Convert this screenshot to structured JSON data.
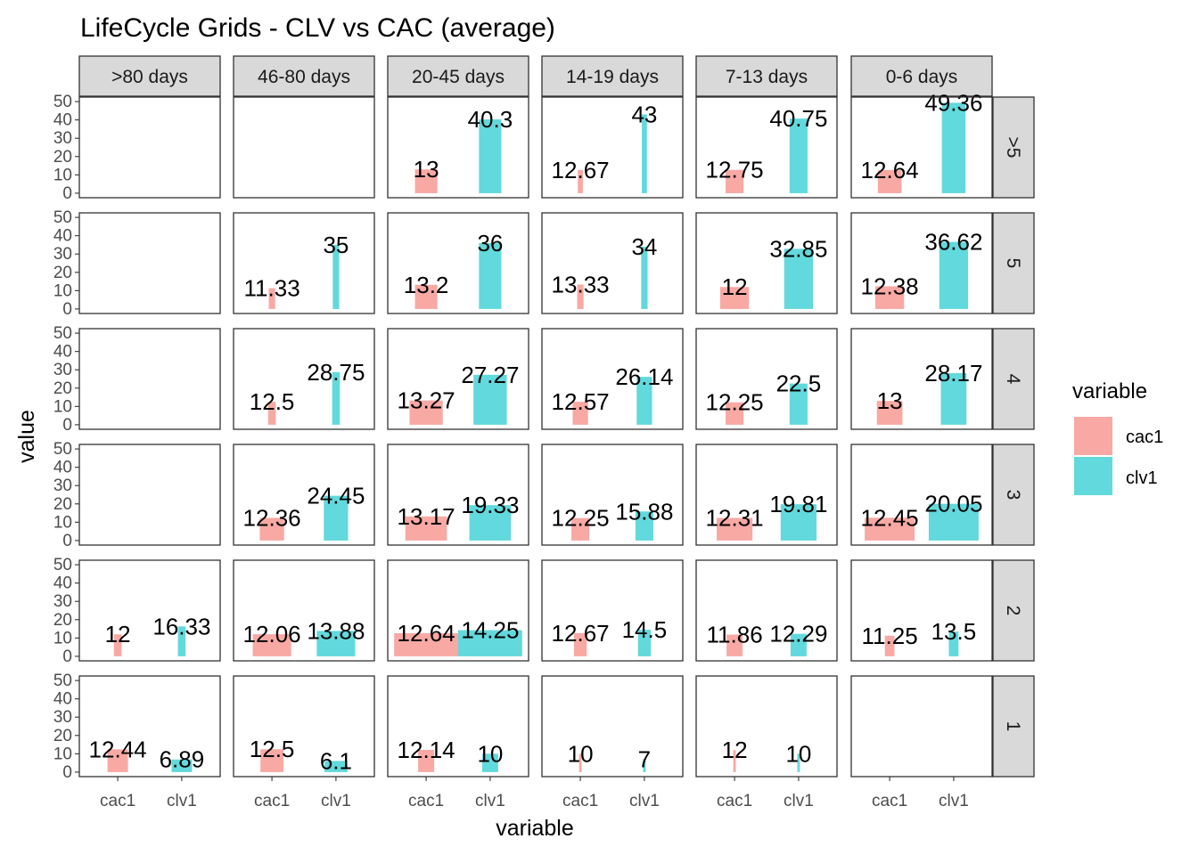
{
  "chart_data": {
    "type": "bar",
    "title": "LifeCycle Grids - CLV vs CAC (average)",
    "xlabel": "variable",
    "ylabel": "value",
    "ylim": [
      0,
      50
    ],
    "yticks": [
      "0",
      "10",
      "20",
      "30",
      "40",
      "50"
    ],
    "categories": [
      "cac1",
      "clv1"
    ],
    "col_facets": [
      ">80 days",
      "46-80 days",
      "20-45 days",
      "14-19 days",
      "7-13 days",
      "0-6 days"
    ],
    "row_facets": [
      ">5",
      "5",
      "4",
      "3",
      "2",
      "1"
    ],
    "grid": false,
    "legend": {
      "title": "variable",
      "placement": "right",
      "entries": [
        {
          "name": "cac1",
          "color": "#F8A9A4"
        },
        {
          "name": "clv1",
          "color": "#62D9DC"
        }
      ]
    },
    "cells": [
      {
        "row": ">5",
        "col": ">80 days",
        "bars": []
      },
      {
        "row": ">5",
        "col": "46-80 days",
        "bars": []
      },
      {
        "row": ">5",
        "col": "20-45 days",
        "bars": [
          {
            "variable": "cac1",
            "value": 13,
            "label": "13",
            "width": 0.35
          },
          {
            "variable": "clv1",
            "value": 40.3,
            "label": "40.3",
            "width": 0.35
          }
        ]
      },
      {
        "row": ">5",
        "col": "14-19 days",
        "bars": [
          {
            "variable": "cac1",
            "value": 12.67,
            "label": "12.67",
            "width": 0.08
          },
          {
            "variable": "clv1",
            "value": 43,
            "label": "43",
            "width": 0.08
          }
        ]
      },
      {
        "row": ">5",
        "col": "7-13 days",
        "bars": [
          {
            "variable": "cac1",
            "value": 12.75,
            "label": "12.75",
            "width": 0.28
          },
          {
            "variable": "clv1",
            "value": 40.75,
            "label": "40.75",
            "width": 0.28
          }
        ]
      },
      {
        "row": ">5",
        "col": "0-6 days",
        "bars": [
          {
            "variable": "cac1",
            "value": 12.64,
            "label": "12.64",
            "width": 0.37
          },
          {
            "variable": "clv1",
            "value": 49.36,
            "label": "49.36",
            "width": 0.37
          }
        ]
      },
      {
        "row": "5",
        "col": ">80 days",
        "bars": []
      },
      {
        "row": "5",
        "col": "46-80 days",
        "bars": [
          {
            "variable": "cac1",
            "value": 11.33,
            "label": "11.33",
            "width": 0.1
          },
          {
            "variable": "clv1",
            "value": 35,
            "label": "35",
            "width": 0.1
          }
        ]
      },
      {
        "row": "5",
        "col": "20-45 days",
        "bars": [
          {
            "variable": "cac1",
            "value": 13.2,
            "label": "13.2",
            "width": 0.35
          },
          {
            "variable": "clv1",
            "value": 36,
            "label": "36",
            "width": 0.35
          }
        ]
      },
      {
        "row": "5",
        "col": "14-19 days",
        "bars": [
          {
            "variable": "cac1",
            "value": 13.33,
            "label": "13.33",
            "width": 0.1
          },
          {
            "variable": "clv1",
            "value": 34,
            "label": "34",
            "width": 0.1
          }
        ]
      },
      {
        "row": "5",
        "col": "7-13 days",
        "bars": [
          {
            "variable": "cac1",
            "value": 12,
            "label": "12",
            "width": 0.45
          },
          {
            "variable": "clv1",
            "value": 32.85,
            "label": "32.85",
            "width": 0.45
          }
        ]
      },
      {
        "row": "5",
        "col": "0-6 days",
        "bars": [
          {
            "variable": "cac1",
            "value": 12.38,
            "label": "12.38",
            "width": 0.45
          },
          {
            "variable": "clv1",
            "value": 36.62,
            "label": "36.62",
            "width": 0.45
          }
        ]
      },
      {
        "row": "4",
        "col": ">80 days",
        "bars": []
      },
      {
        "row": "4",
        "col": "46-80 days",
        "bars": [
          {
            "variable": "cac1",
            "value": 12.5,
            "label": "12.5",
            "width": 0.12
          },
          {
            "variable": "clv1",
            "value": 28.75,
            "label": "28.75",
            "width": 0.12
          }
        ]
      },
      {
        "row": "4",
        "col": "20-45 days",
        "bars": [
          {
            "variable": "cac1",
            "value": 13.27,
            "label": "13.27",
            "width": 0.52
          },
          {
            "variable": "clv1",
            "value": 27.27,
            "label": "27.27",
            "width": 0.52
          }
        ]
      },
      {
        "row": "4",
        "col": "14-19 days",
        "bars": [
          {
            "variable": "cac1",
            "value": 12.57,
            "label": "12.57",
            "width": 0.24
          },
          {
            "variable": "clv1",
            "value": 26.14,
            "label": "26.14",
            "width": 0.24
          }
        ]
      },
      {
        "row": "4",
        "col": "7-13 days",
        "bars": [
          {
            "variable": "cac1",
            "value": 12.25,
            "label": "12.25",
            "width": 0.28
          },
          {
            "variable": "clv1",
            "value": 22.5,
            "label": "22.5",
            "width": 0.28
          }
        ]
      },
      {
        "row": "4",
        "col": "0-6 days",
        "bars": [
          {
            "variable": "cac1",
            "value": 13,
            "label": "13",
            "width": 0.4
          },
          {
            "variable": "clv1",
            "value": 28.17,
            "label": "28.17",
            "width": 0.4
          }
        ]
      },
      {
        "row": "3",
        "col": ">80 days",
        "bars": []
      },
      {
        "row": "3",
        "col": "46-80 days",
        "bars": [
          {
            "variable": "cac1",
            "value": 12.36,
            "label": "12.36",
            "width": 0.38
          },
          {
            "variable": "clv1",
            "value": 24.45,
            "label": "24.45",
            "width": 0.38
          }
        ]
      },
      {
        "row": "3",
        "col": "20-45 days",
        "bars": [
          {
            "variable": "cac1",
            "value": 13.17,
            "label": "13.17",
            "width": 0.65
          },
          {
            "variable": "clv1",
            "value": 19.33,
            "label": "19.33",
            "width": 0.65
          }
        ]
      },
      {
        "row": "3",
        "col": "14-19 days",
        "bars": [
          {
            "variable": "cac1",
            "value": 12.25,
            "label": "12.25",
            "width": 0.28
          },
          {
            "variable": "clv1",
            "value": 15.88,
            "label": "15.88",
            "width": 0.28
          }
        ]
      },
      {
        "row": "3",
        "col": "7-13 days",
        "bars": [
          {
            "variable": "cac1",
            "value": 12.31,
            "label": "12.31",
            "width": 0.56
          },
          {
            "variable": "clv1",
            "value": 19.81,
            "label": "19.81",
            "width": 0.56
          }
        ]
      },
      {
        "row": "3",
        "col": "0-6 days",
        "bars": [
          {
            "variable": "cac1",
            "value": 12.45,
            "label": "12.45",
            "width": 0.78
          },
          {
            "variable": "clv1",
            "value": 20.05,
            "label": "20.05",
            "width": 0.78
          }
        ]
      },
      {
        "row": "2",
        "col": ">80 days",
        "bars": [
          {
            "variable": "cac1",
            "value": 12,
            "label": "12",
            "width": 0.12
          },
          {
            "variable": "clv1",
            "value": 16.33,
            "label": "16.33",
            "width": 0.12
          }
        ]
      },
      {
        "row": "2",
        "col": "46-80 days",
        "bars": [
          {
            "variable": "cac1",
            "value": 12.06,
            "label": "12.06",
            "width": 0.6
          },
          {
            "variable": "clv1",
            "value": 13.88,
            "label": "13.88",
            "width": 0.6
          }
        ]
      },
      {
        "row": "2",
        "col": "20-45 days",
        "bars": [
          {
            "variable": "cac1",
            "value": 12.64,
            "label": "12.64",
            "width": 1.0
          },
          {
            "variable": "clv1",
            "value": 14.25,
            "label": "14.25",
            "width": 1.0
          }
        ]
      },
      {
        "row": "2",
        "col": "14-19 days",
        "bars": [
          {
            "variable": "cac1",
            "value": 12.67,
            "label": "12.67",
            "width": 0.2
          },
          {
            "variable": "clv1",
            "value": 14.5,
            "label": "14.5",
            "width": 0.2
          }
        ]
      },
      {
        "row": "2",
        "col": "7-13 days",
        "bars": [
          {
            "variable": "cac1",
            "value": 11.86,
            "label": "11.86",
            "width": 0.25
          },
          {
            "variable": "clv1",
            "value": 12.29,
            "label": "12.29",
            "width": 0.25
          }
        ]
      },
      {
        "row": "2",
        "col": "0-6 days",
        "bars": [
          {
            "variable": "cac1",
            "value": 11.25,
            "label": "11.25",
            "width": 0.15
          },
          {
            "variable": "clv1",
            "value": 13.5,
            "label": "13.5",
            "width": 0.15
          }
        ]
      },
      {
        "row": "1",
        "col": ">80 days",
        "bars": [
          {
            "variable": "cac1",
            "value": 12.44,
            "label": "12.44",
            "width": 0.32
          },
          {
            "variable": "clv1",
            "value": 6.89,
            "label": "6.89",
            "width": 0.32
          }
        ]
      },
      {
        "row": "1",
        "col": "46-80 days",
        "bars": [
          {
            "variable": "cac1",
            "value": 12.5,
            "label": "12.5",
            "width": 0.36
          },
          {
            "variable": "clv1",
            "value": 6.1,
            "label": "6.1",
            "width": 0.36
          }
        ]
      },
      {
        "row": "1",
        "col": "20-45 days",
        "bars": [
          {
            "variable": "cac1",
            "value": 12.14,
            "label": "12.14",
            "width": 0.25
          },
          {
            "variable": "clv1",
            "value": 10,
            "label": "10",
            "width": 0.25
          }
        ]
      },
      {
        "row": "1",
        "col": "14-19 days",
        "bars": [
          {
            "variable": "cac1",
            "value": 10,
            "label": "10",
            "width": 0.04
          },
          {
            "variable": "clv1",
            "value": 7,
            "label": "7",
            "width": 0.04
          }
        ]
      },
      {
        "row": "1",
        "col": "7-13 days",
        "bars": [
          {
            "variable": "cac1",
            "value": 12,
            "label": "12",
            "width": 0.04
          },
          {
            "variable": "clv1",
            "value": 10,
            "label": "10",
            "width": 0.04
          }
        ]
      },
      {
        "row": "1",
        "col": "0-6 days",
        "bars": []
      }
    ]
  }
}
